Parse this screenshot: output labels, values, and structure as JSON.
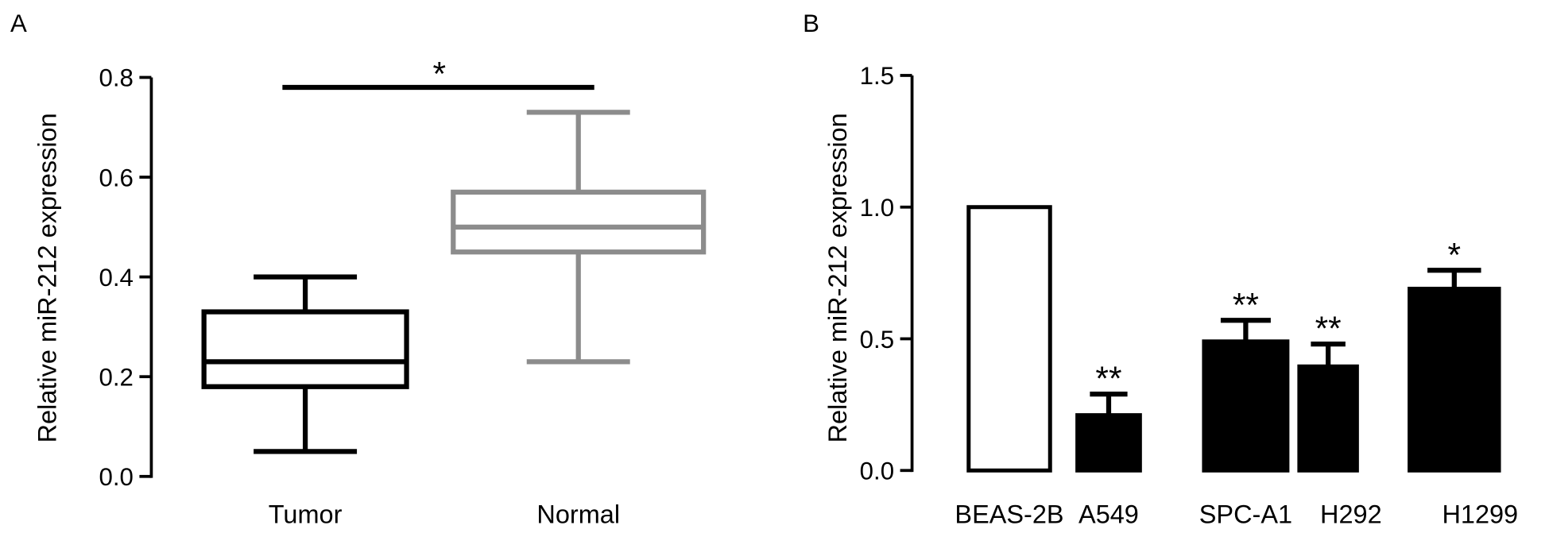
{
  "chart_data": [
    {
      "panel": "A",
      "type": "box",
      "ylabel": "Relative miR-212 expression",
      "ylim": [
        0,
        0.8
      ],
      "yticks": [
        "0.0",
        "0.2",
        "0.4",
        "0.6",
        "0.8"
      ],
      "yticks_values": [
        0,
        0.2,
        0.4,
        0.6,
        0.8
      ],
      "categories": [
        "Tumor",
        "Normal"
      ],
      "boxes": [
        {
          "name": "Tumor",
          "min": 0.05,
          "q1": 0.18,
          "median": 0.23,
          "q3": 0.33,
          "max": 0.4,
          "color": "#000000"
        },
        {
          "name": "Normal",
          "min": 0.23,
          "q1": 0.45,
          "median": 0.5,
          "q3": 0.57,
          "max": 0.73,
          "color": "#8c8c8c"
        }
      ],
      "significance": {
        "label": "*",
        "y": 0.78
      }
    },
    {
      "panel": "B",
      "type": "bar",
      "ylabel": "Relative miR-212 expression",
      "ylim": [
        0,
        1.5
      ],
      "yticks": [
        "0.0",
        "0.5",
        "1.0",
        "1.5"
      ],
      "yticks_values": [
        0,
        0.5,
        1.0,
        1.5
      ],
      "categories": [
        "BEAS-2B",
        "A549",
        "SPC-A1",
        "H292",
        "H1299"
      ],
      "values": [
        1.0,
        0.21,
        0.49,
        0.395,
        0.69
      ],
      "errors": [
        0,
        0.08,
        0.08,
        0.085,
        0.07
      ],
      "fills": [
        "#ffffff",
        "#000000",
        "#000000",
        "#000000",
        "#000000"
      ],
      "annotations": [
        "",
        "**",
        "**",
        "**",
        "*"
      ]
    }
  ]
}
